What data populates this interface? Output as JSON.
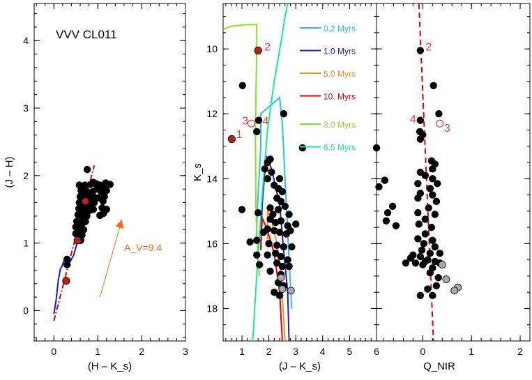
{
  "chart_data": [
    {
      "id": "ccd",
      "type": "scatter",
      "title": "VVV CL011",
      "xlabel": "(H – K_s)",
      "ylabel": "(J – H)",
      "xlim": [
        -0.45,
        3.0
      ],
      "ylim": [
        -0.45,
        4.55
      ],
      "xticks": [
        "0",
        "1",
        "2",
        "3"
      ],
      "yticks": [
        "0",
        "1",
        "2",
        "3",
        "4"
      ],
      "reddening_arrow": {
        "label": "A_V=9.4",
        "color": "#ff6a10",
        "from": [
          1.05,
          0.2
        ],
        "to": [
          1.55,
          1.35
        ]
      },
      "reddening_line": {
        "color": "#e00000",
        "points": [
          [
            0.0,
            -0.15
          ],
          [
            0.92,
            2.15
          ]
        ]
      },
      "intrinsic_sequence": {
        "color": "#1a1acd",
        "points": [
          [
            0.0,
            -0.05
          ],
          [
            0.05,
            0.15
          ],
          [
            0.1,
            0.45
          ],
          [
            0.15,
            0.62
          ],
          [
            0.18,
            0.65
          ],
          [
            0.22,
            0.72
          ],
          [
            0.25,
            0.76
          ],
          [
            0.3,
            0.65
          ],
          [
            0.35,
            0.7
          ],
          [
            0.45,
            0.82
          ],
          [
            0.55,
            1.05
          ]
        ]
      },
      "points": [
        [
          0.76,
          2.09
        ],
        [
          0.58,
          1.86
        ],
        [
          0.64,
          1.84
        ],
        [
          0.71,
          1.86
        ],
        [
          0.84,
          1.87
        ],
        [
          0.9,
          1.9
        ],
        [
          0.96,
          1.88
        ],
        [
          1.05,
          1.86
        ],
        [
          1.13,
          1.85
        ],
        [
          1.18,
          1.89
        ],
        [
          1.28,
          1.87
        ],
        [
          0.62,
          1.78
        ],
        [
          0.68,
          1.76
        ],
        [
          0.74,
          1.77
        ],
        [
          0.82,
          1.74
        ],
        [
          0.88,
          1.76
        ],
        [
          0.98,
          1.8
        ],
        [
          1.08,
          1.76
        ],
        [
          1.2,
          1.78
        ],
        [
          0.6,
          1.69
        ],
        [
          0.66,
          1.68
        ],
        [
          0.72,
          1.67
        ],
        [
          0.78,
          1.66
        ],
        [
          0.85,
          1.67
        ],
        [
          0.9,
          1.69
        ],
        [
          1.0,
          1.67
        ],
        [
          1.15,
          1.69
        ],
        [
          0.58,
          1.6
        ],
        [
          0.64,
          1.59
        ],
        [
          0.7,
          1.58
        ],
        [
          0.76,
          1.57
        ],
        [
          0.82,
          1.58
        ],
        [
          0.92,
          1.6
        ],
        [
          1.12,
          1.62
        ],
        [
          0.57,
          1.51
        ],
        [
          0.63,
          1.5
        ],
        [
          0.7,
          1.49
        ],
        [
          0.8,
          1.48
        ],
        [
          0.9,
          1.5
        ],
        [
          1.1,
          1.52
        ],
        [
          1.2,
          1.5
        ],
        [
          0.55,
          1.42
        ],
        [
          0.62,
          1.41
        ],
        [
          0.68,
          1.39
        ],
        [
          0.75,
          1.4
        ],
        [
          1.05,
          1.41
        ],
        [
          1.13,
          1.44
        ],
        [
          0.52,
          1.32
        ],
        [
          0.58,
          1.31
        ],
        [
          0.66,
          1.3
        ],
        [
          0.72,
          1.32
        ],
        [
          0.5,
          1.24
        ],
        [
          0.56,
          1.22
        ],
        [
          0.62,
          1.21
        ],
        [
          0.68,
          1.2
        ],
        [
          0.5,
          1.14
        ],
        [
          0.57,
          1.13
        ],
        [
          0.64,
          1.12
        ],
        [
          0.55,
          1.05
        ],
        [
          0.61,
          1.04
        ],
        [
          0.3,
          0.76
        ],
        [
          0.3,
          0.68
        ]
      ],
      "red_points": [
        [
          0.28,
          0.44
        ],
        [
          0.54,
          1.04
        ],
        [
          0.72,
          1.62
        ]
      ]
    },
    {
      "id": "cmd",
      "type": "scatter",
      "xlabel": "(J – K_s)",
      "ylabel": "K_s",
      "xlim": [
        0.3,
        6.0
      ],
      "ylim": [
        19.0,
        8.6
      ],
      "xticks": [
        "1",
        "2",
        "3",
        "4",
        "5",
        "6"
      ],
      "yticks": [
        "10",
        "12",
        "14",
        "16",
        "18"
      ],
      "legend": [
        {
          "label": "0.2 Myrs",
          "color": "#22c4e8"
        },
        {
          "label": "1.0 Myrs",
          "color": "#3311bb"
        },
        {
          "label": "5.0 Myrs",
          "color": "#ff8a2a"
        },
        {
          "label": "10. Myrs",
          "color": "#e00000"
        },
        {
          "label": "3.0 Myrs",
          "color": "#88e02a"
        },
        {
          "label": "6.5 Myrs",
          "color": "#11ee99"
        }
      ],
      "isochrones": [
        {
          "name": "0.2 Myrs",
          "color": "#22c4e8",
          "points": [
            [
              1.52,
              16.0
            ],
            [
              1.6,
              14.5
            ],
            [
              1.7,
              13.0
            ],
            [
              1.7,
              12.0
            ],
            [
              2.4,
              11.5
            ],
            [
              2.5,
              12.3
            ],
            [
              2.6,
              14.0
            ],
            [
              2.75,
              16.5
            ],
            [
              2.85,
              18.0
            ]
          ]
        },
        {
          "name": "1.0 Myrs",
          "color": "#3311bb",
          "points": [
            [
              1.7,
              16.2
            ],
            [
              1.75,
              14.8
            ],
            [
              1.9,
              13.3
            ],
            [
              2.1,
              13.7
            ],
            [
              2.4,
              14.8
            ],
            [
              2.55,
              16.2
            ],
            [
              2.7,
              17.5
            ],
            [
              2.75,
              19.0
            ]
          ]
        },
        {
          "name": "5.0 Myrs",
          "color": "#ff8a2a",
          "points": [
            [
              1.95,
              15.9
            ],
            [
              1.95,
              15.0
            ],
            [
              2.1,
              15.3
            ],
            [
              2.3,
              16.0
            ],
            [
              2.45,
              17.0
            ],
            [
              2.55,
              18.3
            ],
            [
              2.6,
              19.0
            ]
          ]
        },
        {
          "name": "10. Myrs",
          "color": "#e00000",
          "points": [
            [
              1.7,
              16.2
            ],
            [
              1.75,
              15.2
            ],
            [
              1.95,
              15.6
            ],
            [
              2.2,
              16.3
            ],
            [
              2.4,
              17.5
            ],
            [
              2.5,
              19.0
            ]
          ]
        },
        {
          "name": "3.0 Myrs",
          "color": "#88e02a",
          "points": [
            [
              0.3,
              9.4
            ],
            [
              0.6,
              9.3
            ],
            [
              1.2,
              9.25
            ],
            [
              1.55,
              9.25
            ],
            [
              1.55,
              10.0
            ],
            [
              1.5,
              12.5
            ],
            [
              1.52,
              15.0
            ],
            [
              1.6,
              16.5
            ],
            [
              1.65,
              17.0
            ]
          ]
        },
        {
          "name": "6.5 Myrs",
          "color": "#11ee99",
          "points": [
            [
              1.4,
              19.0
            ],
            [
              1.55,
              17.0
            ],
            [
              1.75,
              14.5
            ],
            [
              1.95,
              12.5
            ],
            [
              2.2,
              11.0
            ],
            [
              2.45,
              9.8
            ],
            [
              2.6,
              9.0
            ],
            [
              2.7,
              8.6
            ]
          ]
        }
      ],
      "points": [
        [
          1.6,
          10.05
        ],
        [
          1.02,
          11.13
        ],
        [
          1.55,
          12.55
        ],
        [
          2.55,
          12.0
        ],
        [
          3.25,
          13.05
        ],
        [
          1.62,
          12.2
        ],
        [
          1.95,
          13.5
        ],
        [
          2.05,
          13.4
        ],
        [
          1.85,
          13.7
        ],
        [
          2.1,
          13.8
        ],
        [
          1.95,
          14.0
        ],
        [
          2.4,
          14.0
        ],
        [
          2.2,
          14.2
        ],
        [
          2.35,
          14.3
        ],
        [
          2.5,
          14.4
        ],
        [
          2.3,
          14.6
        ],
        [
          2.45,
          14.7
        ],
        [
          2.6,
          14.85
        ],
        [
          2.05,
          14.9
        ],
        [
          2.35,
          14.95
        ],
        [
          2.15,
          15.1
        ],
        [
          2.75,
          15.1
        ],
        [
          1.0,
          14.95
        ],
        [
          1.6,
          15.05
        ],
        [
          2.05,
          15.25
        ],
        [
          2.25,
          15.35
        ],
        [
          2.45,
          15.3
        ],
        [
          2.7,
          15.45
        ],
        [
          3.0,
          15.4
        ],
        [
          1.8,
          15.65
        ],
        [
          1.95,
          15.55
        ],
        [
          2.2,
          15.6
        ],
        [
          2.4,
          15.65
        ],
        [
          2.65,
          15.7
        ],
        [
          2.8,
          15.6
        ],
        [
          1.3,
          15.95
        ],
        [
          1.55,
          15.9
        ],
        [
          2.0,
          16.0
        ],
        [
          2.3,
          16.05
        ],
        [
          2.55,
          16.1
        ],
        [
          2.85,
          16.1
        ],
        [
          1.55,
          16.35
        ],
        [
          1.95,
          16.35
        ],
        [
          2.25,
          16.3
        ],
        [
          2.45,
          16.4
        ],
        [
          2.7,
          16.5
        ],
        [
          1.65,
          16.65
        ],
        [
          2.3,
          16.6
        ],
        [
          2.5,
          16.7
        ],
        [
          2.75,
          16.7
        ],
        [
          2.05,
          16.85
        ],
        [
          2.45,
          16.95
        ],
        [
          2.35,
          17.2
        ],
        [
          2.55,
          17.3
        ],
        [
          2.2,
          17.5
        ],
        [
          2.4,
          17.6
        ]
      ],
      "gray_points": [
        [
          2.45,
          17.05
        ],
        [
          2.82,
          17.45
        ],
        [
          2.5,
          17.4
        ]
      ],
      "red_points": [
        [
          0.62,
          12.78
        ],
        [
          1.6,
          10.05
        ]
      ],
      "open_points": [
        [
          1.35,
          12.3
        ]
      ],
      "annotations": [
        {
          "text": "1",
          "x": 0.9,
          "y": 12.62,
          "color": "#e84040"
        },
        {
          "text": "2",
          "x": 1.95,
          "y": 9.92,
          "color": "#e84040"
        },
        {
          "text": "3",
          "x": 1.12,
          "y": 12.2,
          "color": "#e84040"
        },
        {
          "text": "4",
          "x": 1.88,
          "y": 12.2,
          "color": "#e84040"
        }
      ]
    },
    {
      "id": "qnir",
      "type": "scatter",
      "xlabel": "Q_NIR",
      "xlim": [
        -0.95,
        2.2
      ],
      "ylim": [
        19.0,
        8.6
      ],
      "xticks": [
        "0",
        "1",
        "2"
      ],
      "ref_line": {
        "color": "#e00000",
        "points": [
          [
            -0.08,
            8.6
          ],
          [
            0.22,
            19.0
          ]
        ]
      },
      "points": [
        [
          -0.05,
          10.05
        ],
        [
          0.22,
          11.13
        ],
        [
          -0.05,
          12.2
        ],
        [
          0.33,
          12.0
        ],
        [
          -0.06,
          12.55
        ],
        [
          0.0,
          12.65
        ],
        [
          -0.05,
          12.78
        ],
        [
          -0.95,
          13.05
        ],
        [
          0.18,
          13.45
        ],
        [
          0.25,
          13.55
        ],
        [
          0.2,
          13.7
        ],
        [
          -0.05,
          13.8
        ],
        [
          0.05,
          13.9
        ],
        [
          0.2,
          14.0
        ],
        [
          -0.1,
          14.15
        ],
        [
          0.3,
          14.15
        ],
        [
          -0.78,
          14.05
        ],
        [
          -0.9,
          14.25
        ],
        [
          0.15,
          14.3
        ],
        [
          -0.05,
          14.45
        ],
        [
          0.2,
          14.5
        ],
        [
          0.28,
          14.7
        ],
        [
          -0.1,
          14.6
        ],
        [
          -0.62,
          14.85
        ],
        [
          0.12,
          14.9
        ],
        [
          -0.1,
          15.05
        ],
        [
          -0.72,
          15.05
        ],
        [
          0.25,
          15.1
        ],
        [
          0.05,
          15.25
        ],
        [
          -0.75,
          15.3
        ],
        [
          -0.55,
          15.45
        ],
        [
          -0.08,
          15.4
        ],
        [
          0.18,
          15.5
        ],
        [
          -1.0,
          15.2
        ],
        [
          0.05,
          15.7
        ],
        [
          -0.1,
          15.85
        ],
        [
          0.2,
          15.9
        ],
        [
          0.02,
          16.0
        ],
        [
          0.25,
          16.1
        ],
        [
          -0.02,
          16.2
        ],
        [
          0.15,
          16.3
        ],
        [
          0.35,
          16.3
        ],
        [
          -0.2,
          16.35
        ],
        [
          -0.05,
          16.4
        ],
        [
          0.1,
          16.5
        ],
        [
          0.25,
          16.55
        ],
        [
          0.05,
          16.55
        ],
        [
          -0.35,
          16.6
        ],
        [
          -0.15,
          16.6
        ],
        [
          0.0,
          16.65
        ],
        [
          -0.25,
          16.45
        ],
        [
          0.2,
          16.75
        ],
        [
          0.35,
          16.6
        ],
        [
          0.15,
          16.9
        ],
        [
          0.32,
          17.05
        ],
        [
          0.28,
          17.3
        ],
        [
          0.1,
          17.4
        ],
        [
          -0.05,
          17.6
        ],
        [
          0.2,
          17.6
        ]
      ],
      "gray_points": [
        [
          0.4,
          16.65
        ],
        [
          0.48,
          17.1
        ],
        [
          0.72,
          17.35
        ],
        [
          0.65,
          17.45
        ]
      ],
      "open_points": [
        [
          0.35,
          12.3
        ]
      ],
      "annotations": [
        {
          "text": "2",
          "x": 0.12,
          "y": 9.92,
          "color": "#e84040"
        },
        {
          "text": "4",
          "x": -0.2,
          "y": 12.15,
          "color": "#e84040"
        },
        {
          "text": "3",
          "x": 0.5,
          "y": 12.42,
          "color": "#e84040"
        }
      ]
    }
  ]
}
